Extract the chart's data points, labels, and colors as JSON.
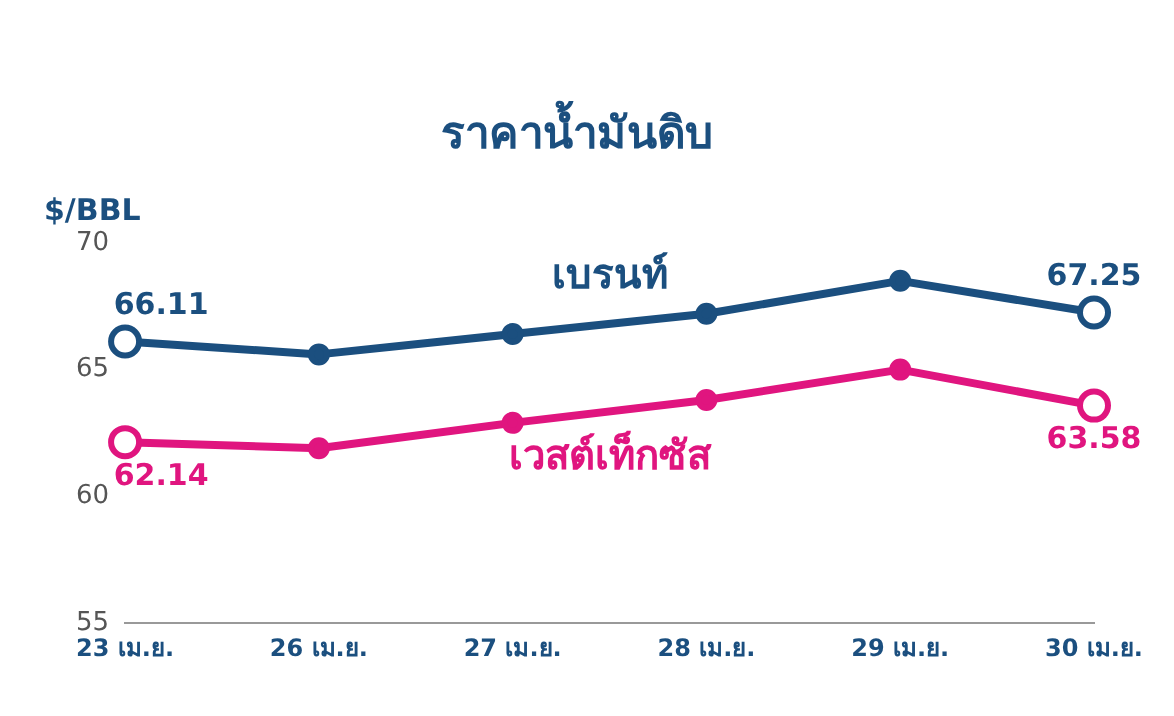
{
  "chart_data": {
    "type": "line",
    "title": "ราคาน้ำมันดิบ",
    "ylabel": "$/BBL",
    "categories": [
      "23 เม.ย.",
      "26 เม.ย.",
      "27 เม.ย.",
      "28 เม.ย.",
      "29 เม.ย.",
      "30 เม.ย."
    ],
    "series": [
      {
        "name": "เบรนท์",
        "color": "#1b4f7f",
        "values": [
          66.11,
          65.6,
          66.4,
          67.2,
          68.5,
          67.25
        ],
        "value_labels": [
          "66.11",
          null,
          null,
          null,
          null,
          "67.25"
        ]
      },
      {
        "name": "เวสต์เท็กซัส",
        "color": "#e0157f",
        "values": [
          62.14,
          61.9,
          62.9,
          63.8,
          65.0,
          63.58
        ],
        "value_labels": [
          "62.14",
          null,
          null,
          null,
          null,
          "63.58"
        ]
      }
    ],
    "ylim": [
      55,
      70
    ],
    "yticks": [
      55,
      60,
      65,
      70
    ],
    "grid": false,
    "legend": false,
    "marker": "circle",
    "line_style": "solid"
  }
}
